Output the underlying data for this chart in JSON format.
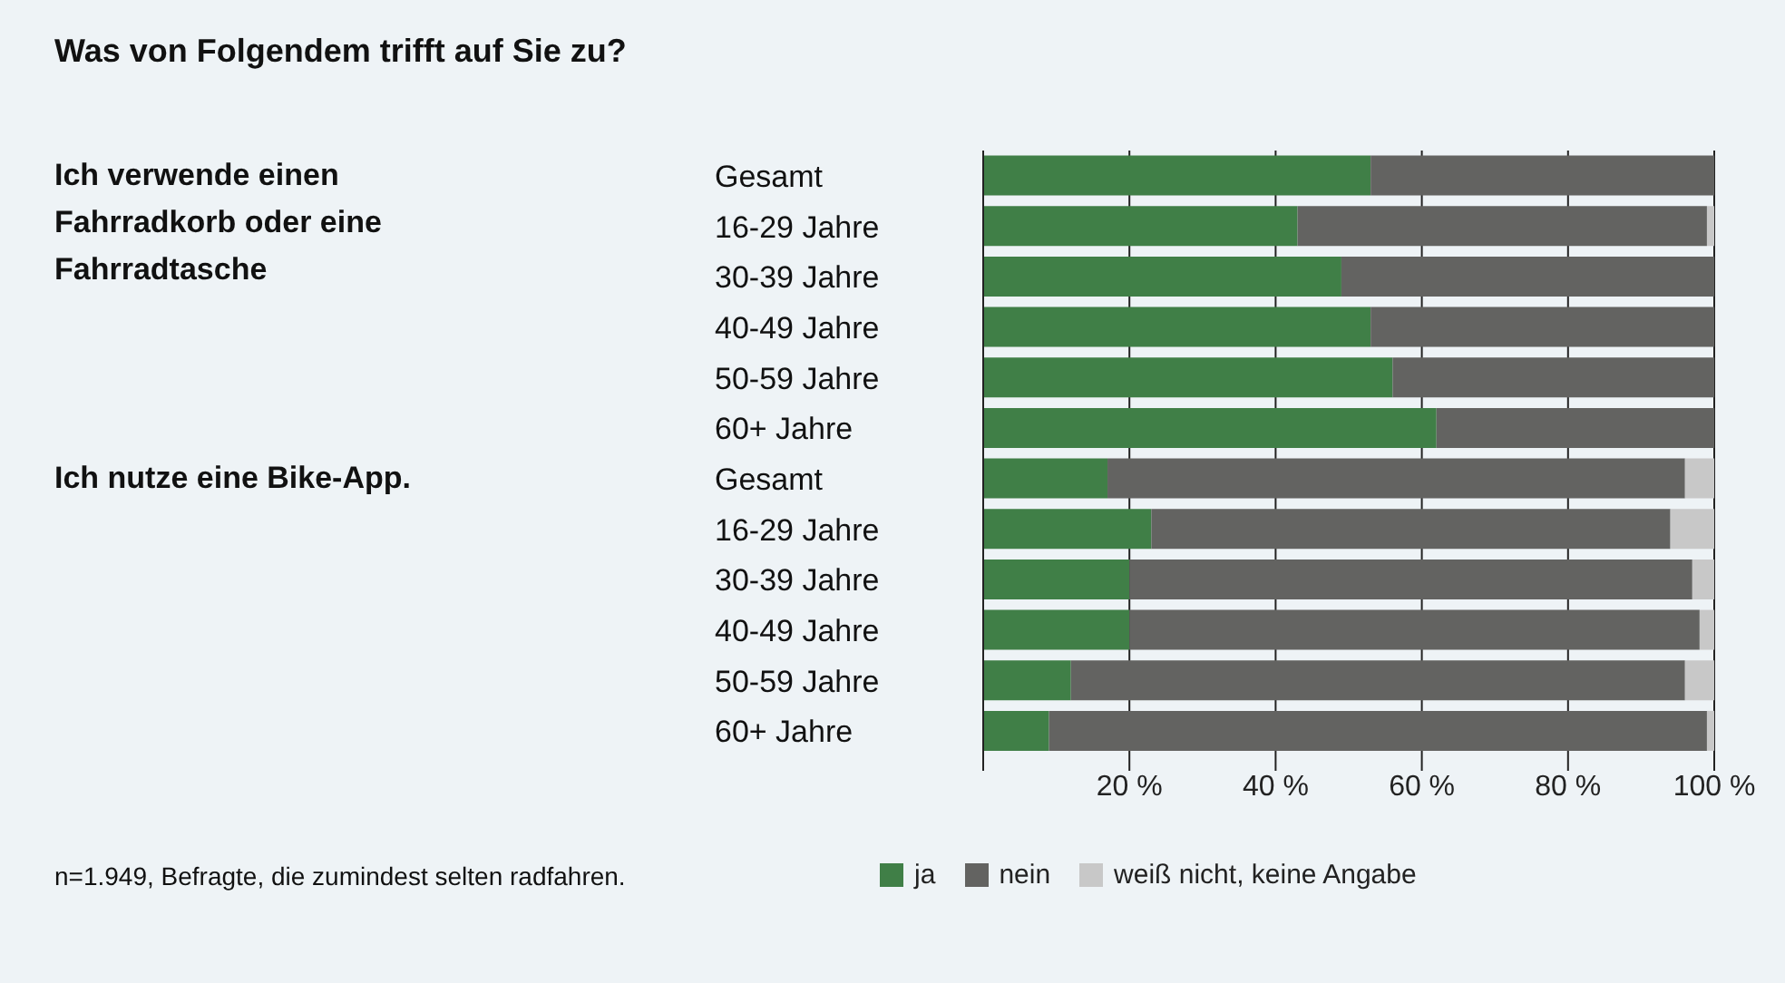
{
  "chart_data": {
    "type": "bar",
    "orientation": "horizontal",
    "stacked": true,
    "title": "Was von Folgendem trifft auf Sie zu?",
    "categories": [
      "Gesamt",
      "16-29 Jahre",
      "30-39 Jahre",
      "40-49 Jahre",
      "50-59 Jahre",
      "60+ Jahre",
      "Gesamt",
      "16-29 Jahre",
      "30-39 Jahre",
      "40-49 Jahre",
      "50-59 Jahre",
      "60+ Jahre"
    ],
    "series": [
      {
        "name": "ja",
        "color": "#407f47",
        "values": [
          53,
          43,
          49,
          53,
          56,
          62,
          17,
          23,
          20,
          20,
          12,
          9
        ]
      },
      {
        "name": "nein",
        "color": "#636361",
        "values": [
          47,
          56,
          51,
          47,
          44,
          38,
          79,
          71,
          77,
          78,
          84,
          90
        ]
      },
      {
        "name": "weiß nicht, keine Angabe",
        "color": "#c8c8c8",
        "values": [
          0,
          1,
          0,
          0,
          0,
          0,
          4,
          6,
          3,
          2,
          4,
          1
        ]
      }
    ],
    "xlim": [
      0,
      100
    ],
    "xticks": [
      {
        "value": 0,
        "label": null
      },
      {
        "value": 20,
        "label": "20 %"
      },
      {
        "value": 40,
        "label": "40 %"
      },
      {
        "value": 60,
        "label": "60 %"
      },
      {
        "value": 80,
        "label": "80 %"
      },
      {
        "value": 100,
        "label": "100 %"
      }
    ],
    "grid": "x",
    "legend": "bottom",
    "annotations": [
      "Ich verwende einen Fahrradkorb oder eine Fahrradtasche",
      "Ich nutze eine Bike-App.",
      "n=1.949, Befragte, die zumindest selten radfahren."
    ]
  }
}
